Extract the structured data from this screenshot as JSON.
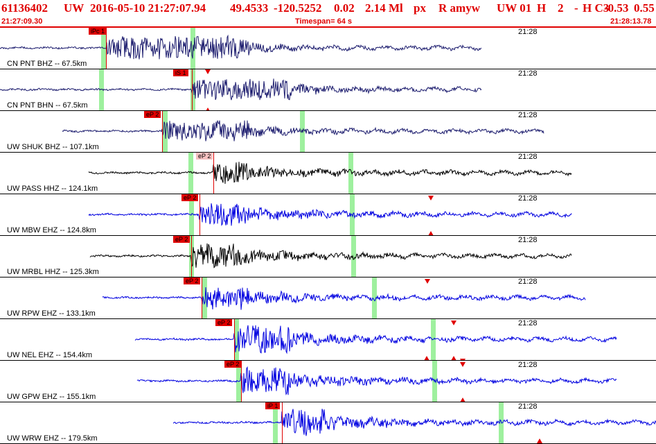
{
  "header": {
    "event_id": "61136402",
    "network": "UW",
    "datetime": "2016-05-10 21:27:07.94",
    "lat": "49.4533",
    "lon": "-120.5252",
    "depth": "0.02",
    "magnitude": "2.14 Ml",
    "type": "px",
    "flags": "R amyw",
    "network2": "UW 01",
    "quality1": "H",
    "quality2": "2",
    "dash": "-",
    "qc": "H C3",
    "val1": "-0.53",
    "val2": "0.55"
  },
  "subheader": {
    "start_time": "21:27:09.30",
    "timespan": "Timespan=  64 s",
    "end_time": "21:28:13.78"
  },
  "colors": {
    "header_text": "#e00000",
    "pick": "#e00000",
    "green_bar": "#9ef09e",
    "trace_navy": "#1c1c6e",
    "trace_black": "#000000",
    "trace_blue": "#0000e0"
  },
  "traces": [
    {
      "label": "CN PNT BHZ -- 67.5km",
      "time": "21:28",
      "pick": "iPc 1",
      "color": "trace_navy"
    },
    {
      "label": "CN PNT BHN -- 67.5km",
      "time": "21:28",
      "pick": "iS 1",
      "color": "trace_navy"
    },
    {
      "label": "UW SHUK BHZ -- 107.1km",
      "time": "21:28",
      "pick": "eP 2",
      "color": "trace_navy"
    },
    {
      "label": "UW PASS HHZ -- 124.1km",
      "time": "21:28",
      "pick": "eP 2",
      "color": "trace_black"
    },
    {
      "label": "UW MBW EHZ -- 124.8km",
      "time": "21:28",
      "pick": "eP 2",
      "color": "trace_blue"
    },
    {
      "label": "UW MRBL HHZ -- 125.3km",
      "time": "21:28",
      "pick": "eP 2",
      "color": "trace_black"
    },
    {
      "label": "UW RPW EHZ -- 133.1km",
      "time": "21:28",
      "pick": "eP 2",
      "color": "trace_blue"
    },
    {
      "label": "UW NEL EHZ -- 154.4km",
      "time": "21:28",
      "pick": "eP 2",
      "color": "trace_blue"
    },
    {
      "label": "UW GPW EHZ -- 155.1km",
      "time": "21:28",
      "pick": "eP 2",
      "color": "trace_blue"
    },
    {
      "label": "UW WRW EHZ -- 179.5km",
      "time": "21:28",
      "pick": "iP 1",
      "color": "trace_blue"
    }
  ]
}
